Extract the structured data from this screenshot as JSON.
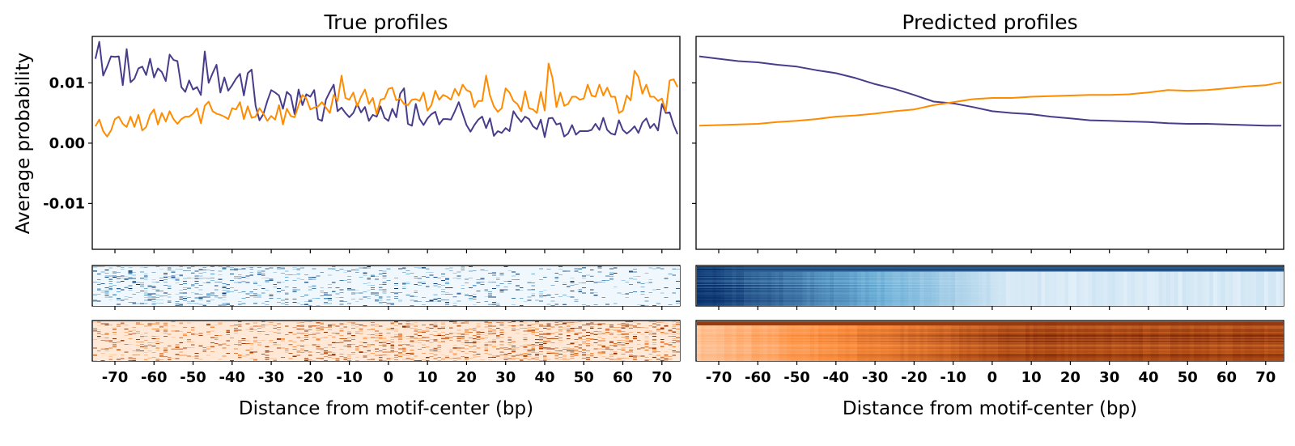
{
  "figure": {
    "ylabel": "Average probability",
    "xlabel": "Distance from motif-center (bp)"
  },
  "chart_data": [
    {
      "type": "line",
      "title": "True profiles",
      "xlabel": "Distance from motif-center (bp)",
      "ylabel": "Average probability",
      "xlim": [
        -75.8,
        74.6
      ],
      "ylim": [
        -0.0176,
        0.0177
      ],
      "xticks": [
        -70,
        -60,
        -50,
        -40,
        -30,
        -20,
        -10,
        0,
        10,
        20,
        30,
        40,
        50,
        60,
        70
      ],
      "yticks": [
        0.01,
        0.0,
        -0.01
      ],
      "ytick_labels": [
        "0.01",
        "0.00",
        "-0.01"
      ],
      "grid": false,
      "x": [
        -75,
        -74,
        -73,
        -72,
        -71,
        -70,
        -69,
        -68,
        -67,
        -66,
        -65,
        -64,
        -63,
        -62,
        -61,
        -60,
        -59,
        -58,
        -57,
        -56,
        -55,
        -54,
        -53,
        -52,
        -51,
        -50,
        -49,
        -48,
        -47,
        -46,
        -45,
        -44,
        -43,
        -42,
        -41,
        -40,
        -39,
        -38,
        -37,
        -36,
        -35,
        -34,
        -33,
        -32,
        -31,
        -30,
        -29,
        -28,
        -27,
        -26,
        -25,
        -24,
        -23,
        -22,
        -21,
        -20,
        -19,
        -18,
        -17,
        -16,
        -15,
        -14,
        -13,
        -12,
        -11,
        -10,
        -9,
        -8,
        -7,
        -6,
        -5,
        -4,
        -3,
        -2,
        -1,
        0,
        1,
        2,
        3,
        4,
        5,
        6,
        7,
        8,
        9,
        10,
        11,
        12,
        13,
        14,
        15,
        16,
        17,
        18,
        19,
        20,
        21,
        22,
        23,
        24,
        25,
        26,
        27,
        28,
        29,
        30,
        31,
        32,
        33,
        34,
        35,
        36,
        37,
        38,
        39,
        40,
        41,
        42,
        43,
        44,
        45,
        46,
        47,
        48,
        49,
        50,
        51,
        52,
        53,
        54,
        55,
        56,
        57,
        58,
        59,
        60,
        61,
        62,
        63,
        64,
        65,
        66,
        67,
        68,
        69,
        70,
        71,
        72,
        73,
        74
      ],
      "series": [
        {
          "color": "#483d8b",
          "values": [
            0.014,
            0.0168,
            0.0112,
            0.0127,
            0.0144,
            0.0143,
            0.0144,
            0.0096,
            0.0156,
            0.0101,
            0.0107,
            0.0124,
            0.0127,
            0.0113,
            0.014,
            0.0109,
            0.0124,
            0.0118,
            0.0103,
            0.0147,
            0.0138,
            0.0136,
            0.0093,
            0.0085,
            0.0104,
            0.0089,
            0.0093,
            0.008,
            0.0152,
            0.01,
            0.0116,
            0.013,
            0.0084,
            0.0109,
            0.0087,
            0.0096,
            0.0107,
            0.0115,
            0.0079,
            0.0116,
            0.0122,
            0.0062,
            0.0038,
            0.0048,
            0.007,
            0.0088,
            0.0084,
            0.0079,
            0.0057,
            0.0085,
            0.0079,
            0.0048,
            0.0089,
            0.0063,
            0.0081,
            0.0077,
            0.0088,
            0.004,
            0.0037,
            0.0072,
            0.0085,
            0.0097,
            0.0053,
            0.0059,
            0.005,
            0.0043,
            0.005,
            0.0065,
            0.0051,
            0.006,
            0.0037,
            0.0047,
            0.0044,
            0.0061,
            0.0042,
            0.0037,
            0.0057,
            0.0043,
            0.0082,
            0.0091,
            0.0032,
            0.0029,
            0.0065,
            0.004,
            0.003,
            0.0041,
            0.0048,
            0.0052,
            0.0031,
            0.004,
            0.004,
            0.0039,
            0.0053,
            0.0068,
            0.0049,
            0.003,
            0.0019,
            0.003,
            0.0039,
            0.0044,
            0.0025,
            0.0041,
            0.0012,
            0.002,
            0.0017,
            0.0025,
            0.002,
            0.0053,
            0.0043,
            0.0035,
            0.0044,
            0.004,
            0.0028,
            0.0023,
            0.0039,
            0.001,
            0.0041,
            0.0042,
            0.0031,
            0.0033,
            0.0011,
            0.0016,
            0.003,
            0.0014,
            0.002,
            0.002,
            0.002,
            0.0022,
            0.0032,
            0.0022,
            0.0042,
            0.0022,
            0.0016,
            0.0014,
            0.0038,
            0.0022,
            0.0016,
            0.0021,
            0.0028,
            0.0017,
            0.0034,
            0.0041,
            0.0025,
            0.0032,
            0.0021,
            0.0065,
            0.005,
            0.0051,
            0.003,
            0.0015
          ]
        },
        {
          "color": "#ff8c00",
          "values": [
            0.0028,
            0.0039,
            0.002,
            0.0011,
            0.0021,
            0.004,
            0.0044,
            0.0032,
            0.0027,
            0.0044,
            0.0027,
            0.0047,
            0.0021,
            0.0027,
            0.0047,
            0.0056,
            0.0031,
            0.005,
            0.0036,
            0.0053,
            0.004,
            0.0032,
            0.004,
            0.0044,
            0.0044,
            0.0049,
            0.0058,
            0.0033,
            0.0062,
            0.0069,
            0.0053,
            0.0049,
            0.0047,
            0.0044,
            0.004,
            0.0058,
            0.0056,
            0.0068,
            0.004,
            0.0061,
            0.0042,
            0.0044,
            0.0058,
            0.0049,
            0.0037,
            0.0045,
            0.0039,
            0.0063,
            0.0031,
            0.0057,
            0.0045,
            0.0043,
            0.0063,
            0.008,
            0.0074,
            0.0056,
            0.0059,
            0.0061,
            0.0068,
            0.0059,
            0.005,
            0.008,
            0.007,
            0.0112,
            0.0075,
            0.0072,
            0.0084,
            0.0061,
            0.0077,
            0.0089,
            0.0065,
            0.0075,
            0.0048,
            0.0072,
            0.0074,
            0.009,
            0.0092,
            0.0071,
            0.0074,
            0.0065,
            0.0063,
            0.0072,
            0.0073,
            0.007,
            0.0084,
            0.0054,
            0.0063,
            0.0087,
            0.0072,
            0.008,
            0.0077,
            0.0072,
            0.009,
            0.0079,
            0.0097,
            0.0088,
            0.0085,
            0.006,
            0.007,
            0.007,
            0.0112,
            0.0079,
            0.0061,
            0.0052,
            0.0058,
            0.0091,
            0.0084,
            0.007,
            0.0065,
            0.0053,
            0.0086,
            0.0058,
            0.0056,
            0.005,
            0.0085,
            0.0054,
            0.0132,
            0.0108,
            0.006,
            0.0084,
            0.0062,
            0.0065,
            0.0077,
            0.0077,
            0.0072,
            0.0074,
            0.0097,
            0.0079,
            0.0077,
            0.0097,
            0.0079,
            0.0092,
            0.0077,
            0.0077,
            0.005,
            0.0054,
            0.0079,
            0.0071,
            0.012,
            0.011,
            0.0082,
            0.0097,
            0.0077,
            0.0077,
            0.007,
            0.0074,
            0.0053,
            0.0104,
            0.0106,
            0.0093
          ]
        }
      ],
      "heatmaps": [
        {
          "colormap": "Blues",
          "pattern": "sparse"
        },
        {
          "colormap": "Oranges",
          "pattern": "sparse"
        }
      ]
    },
    {
      "type": "line",
      "title": "Predicted profiles",
      "xlabel": "Distance from motif-center (bp)",
      "xlim": [
        -75.8,
        74.6
      ],
      "ylim": [
        -0.0176,
        0.0177
      ],
      "xticks": [
        -70,
        -60,
        -50,
        -40,
        -30,
        -20,
        -10,
        0,
        10,
        20,
        30,
        40,
        50,
        60,
        70
      ],
      "yticks": [
        0.01,
        0.0,
        -0.01
      ],
      "ytick_labels": [],
      "grid": false,
      "x": [
        -75,
        -70,
        -65,
        -60,
        -55,
        -50,
        -45,
        -40,
        -35,
        -30,
        -25,
        -20,
        -15,
        -10,
        -5,
        0,
        5,
        10,
        15,
        20,
        25,
        30,
        35,
        40,
        45,
        50,
        55,
        60,
        65,
        70,
        74
      ],
      "series": [
        {
          "color": "#483d8b",
          "values": [
            0.0144,
            0.014,
            0.0136,
            0.0134,
            0.013,
            0.0127,
            0.0121,
            0.0116,
            0.0108,
            0.0098,
            0.009,
            0.008,
            0.0069,
            0.0066,
            0.006,
            0.0053,
            0.005,
            0.0048,
            0.0044,
            0.0041,
            0.0038,
            0.0037,
            0.0036,
            0.0035,
            0.0033,
            0.0032,
            0.0032,
            0.0031,
            0.003,
            0.0029,
            0.0029
          ]
        },
        {
          "color": "#ff8c00",
          "values": [
            0.0029,
            0.003,
            0.0031,
            0.0032,
            0.0035,
            0.0037,
            0.004,
            0.0044,
            0.0046,
            0.0049,
            0.0053,
            0.0056,
            0.0063,
            0.0068,
            0.0073,
            0.0075,
            0.0075,
            0.0077,
            0.0078,
            0.0079,
            0.008,
            0.008,
            0.0081,
            0.0084,
            0.0088,
            0.0087,
            0.0088,
            0.0091,
            0.0094,
            0.0096,
            0.0101
          ]
        }
      ],
      "heatmaps": [
        {
          "colormap": "Blues",
          "pattern": "dark-left-fading-right"
        },
        {
          "colormap": "Oranges",
          "pattern": "light-left-darkening-right"
        }
      ]
    }
  ]
}
